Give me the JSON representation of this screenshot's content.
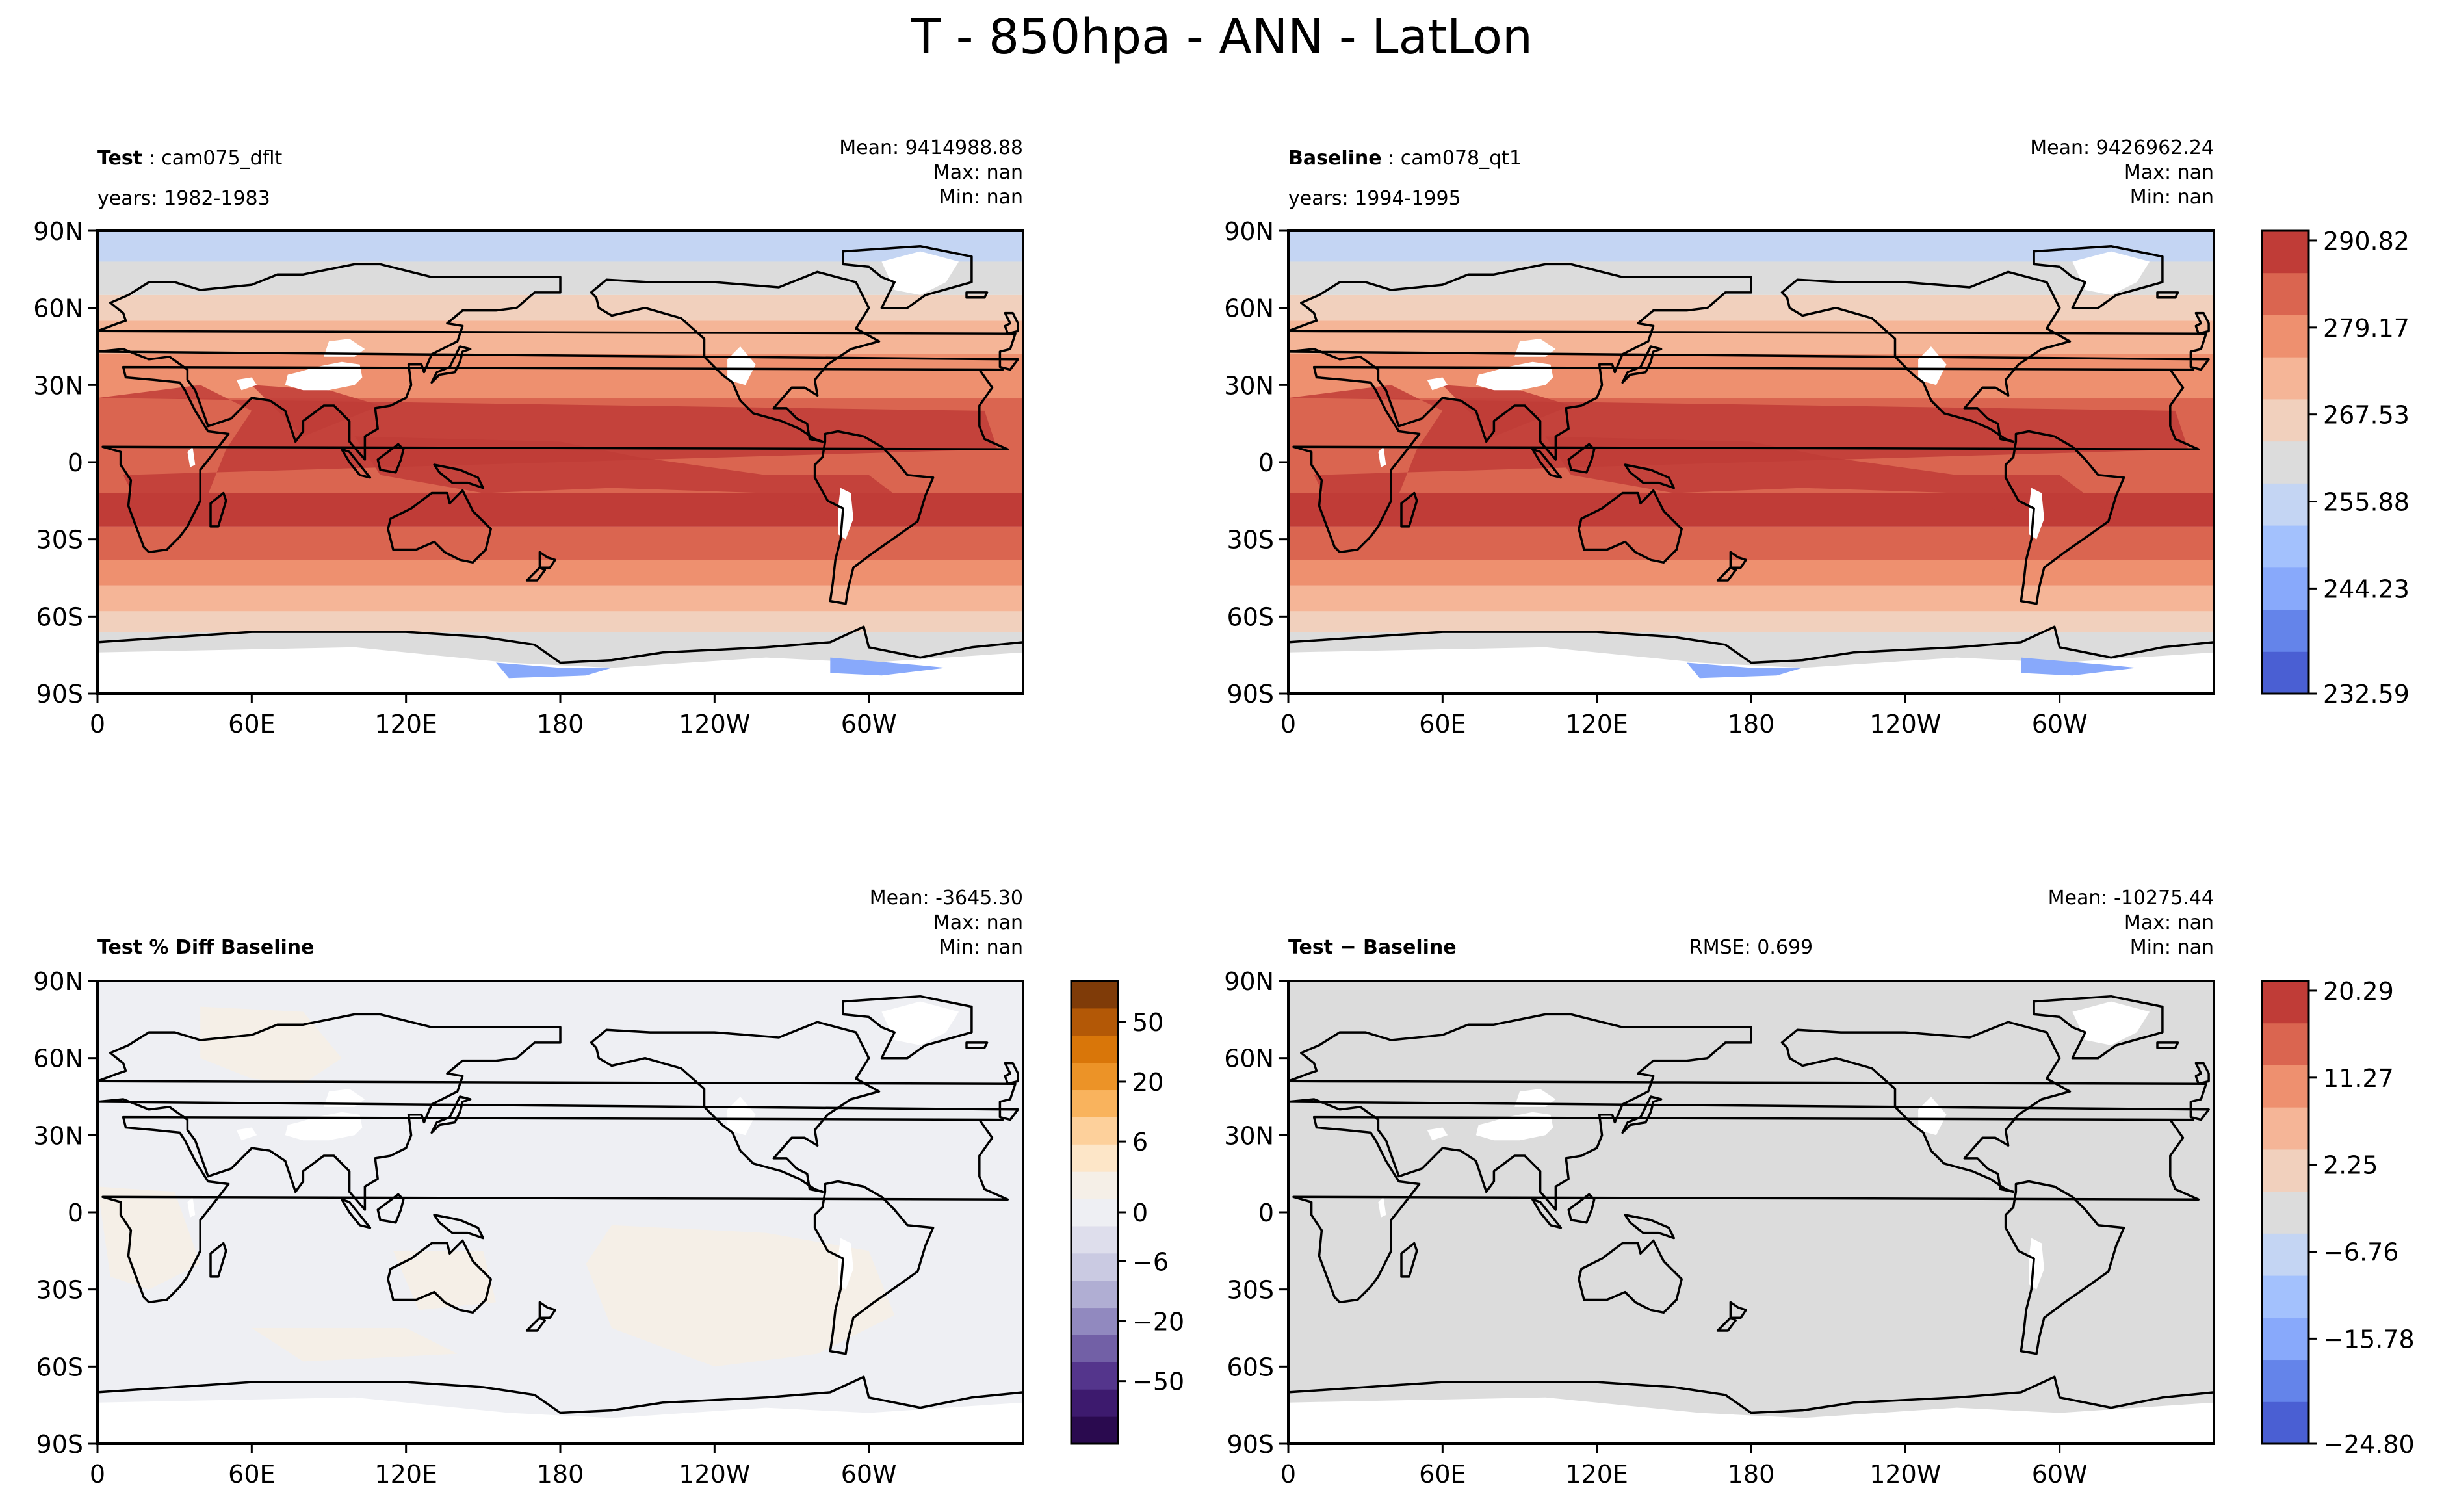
{
  "figure": {
    "title": "T - 850hpa - ANN - LatLon"
  },
  "panels": [
    {
      "id": "test",
      "label_bold": "Test",
      "label_rest": ": cam075_dflt",
      "years": "years: 1982-1983",
      "stats": [
        "Mean: 9414988.88",
        "Max:   nan",
        "Min:   nan"
      ],
      "rmse": ""
    },
    {
      "id": "baseline",
      "label_bold": "Baseline",
      "label_rest": ": cam078_qt1",
      "years": "years: 1994-1995",
      "stats": [
        "Mean: 9426962.24",
        "Max:   nan",
        "Min:   nan"
      ],
      "rmse": ""
    },
    {
      "id": "pctdiff",
      "label_bold": "Test % Diff Baseline",
      "label_rest": "",
      "years": "",
      "stats": [
        "Mean: -3645.30",
        "Max:   nan",
        "Min:   nan"
      ],
      "rmse": ""
    },
    {
      "id": "diff",
      "label_bold": "Test − Baseline",
      "label_rest": "",
      "years": "",
      "stats": [
        "Mean: -10275.44",
        "Max:   nan",
        "Min:   nan"
      ],
      "rmse": "RMSE: 0.699"
    }
  ],
  "axes": {
    "x_ticks": [
      "0",
      "60E",
      "120E",
      "180",
      "120W",
      "60W"
    ],
    "y_ticks": [
      "90N",
      "60N",
      "30N",
      "0",
      "30S",
      "60S",
      "90S"
    ]
  },
  "colorbars": [
    {
      "id": "temperature",
      "labels": [
        "290.82",
        "279.17",
        "267.53",
        "255.88",
        "244.23",
        "232.59"
      ],
      "colors": [
        "#4a5fd3",
        "#6484ea",
        "#88a9fb",
        "#a3c1fd",
        "#c4d5f3",
        "#dcdcdc",
        "#f1d0bd",
        "#f5b597",
        "#ee906f",
        "#da6550",
        "#c03c37"
      ]
    },
    {
      "id": "percent",
      "labels": [
        "50",
        "20",
        "6",
        "0",
        "−6",
        "−20",
        "−50"
      ],
      "colors": [
        "#2a0a4f",
        "#3d1a6e",
        "#54358c",
        "#7260a6",
        "#9189bf",
        "#b0aed3",
        "#cacae2",
        "#dedeec",
        "#eeeff3",
        "#f5efe7",
        "#fde6c8",
        "#fdd09b",
        "#f9b35d",
        "#ec9327",
        "#d97609",
        "#b35806",
        "#7f3b08"
      ]
    },
    {
      "id": "difference",
      "labels": [
        "20.29",
        "11.27",
        "2.25",
        "−6.76",
        "−15.78",
        "−24.80"
      ],
      "colors": [
        "#4a5fd3",
        "#6484ea",
        "#88a9fb",
        "#a3c1fd",
        "#c4d5f3",
        "#dcdcdc",
        "#f1d0bd",
        "#f5b597",
        "#ee906f",
        "#da6550",
        "#c03c37"
      ]
    }
  ],
  "chart_data": [
    {
      "type": "heatmap",
      "title": "Test: cam075_dflt",
      "xlabel": "",
      "ylabel": "",
      "x_tick_labels": [
        "0",
        "60E",
        "120E",
        "180",
        "120W",
        "60W"
      ],
      "y_tick_labels": [
        "90N",
        "60N",
        "30N",
        "0",
        "30S",
        "60S",
        "90S"
      ],
      "xlim": [
        0,
        360
      ],
      "ylim": [
        -90,
        90
      ],
      "colorbar_levels": [
        232.59,
        244.23,
        255.88,
        267.53,
        279.17,
        290.82
      ]
    },
    {
      "type": "heatmap",
      "title": "Baseline: cam078_qt1",
      "xlabel": "",
      "ylabel": "",
      "x_tick_labels": [
        "0",
        "60E",
        "120E",
        "180",
        "120W",
        "60W"
      ],
      "y_tick_labels": [
        "90N",
        "60N",
        "30N",
        "0",
        "30S",
        "60S",
        "90S"
      ],
      "xlim": [
        0,
        360
      ],
      "ylim": [
        -90,
        90
      ],
      "colorbar_levels": [
        232.59,
        244.23,
        255.88,
        267.53,
        279.17,
        290.82
      ]
    },
    {
      "type": "heatmap",
      "title": "Test % Diff Baseline",
      "xlabel": "",
      "ylabel": "",
      "x_tick_labels": [
        "0",
        "60E",
        "120E",
        "180",
        "120W",
        "60W"
      ],
      "y_tick_labels": [
        "90N",
        "60N",
        "30N",
        "0",
        "30S",
        "60S",
        "90S"
      ],
      "xlim": [
        0,
        360
      ],
      "ylim": [
        -90,
        90
      ],
      "colorbar_levels": [
        -50,
        -20,
        -6,
        0,
        6,
        20,
        50
      ]
    },
    {
      "type": "heatmap",
      "title": "Test − Baseline",
      "xlabel": "",
      "ylabel": "",
      "x_tick_labels": [
        "0",
        "60E",
        "120E",
        "180",
        "120W",
        "60W"
      ],
      "y_tick_labels": [
        "90N",
        "60N",
        "30N",
        "0",
        "30S",
        "60S",
        "90S"
      ],
      "xlim": [
        0,
        360
      ],
      "ylim": [
        -90,
        90
      ],
      "colorbar_levels": [
        -24.8,
        -15.78,
        -6.76,
        2.25,
        11.27,
        20.29
      ]
    }
  ]
}
